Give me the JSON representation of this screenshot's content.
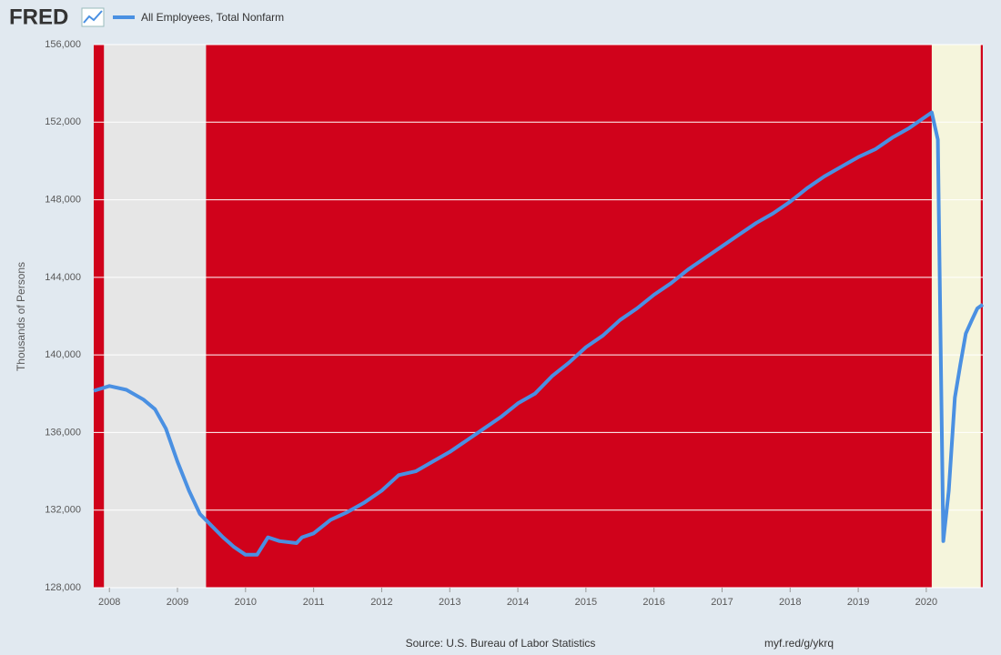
{
  "logo": "FRED",
  "chart_data": {
    "type": "line",
    "y_axis_label": "Thousands of Persons",
    "source": "Source: U.S. Bureau of Labor Statistics",
    "link": "myf.red/g/ykrq",
    "plot_background": "#d0021b",
    "grid": true,
    "bands": [
      {
        "start": 2007.92,
        "end": 2009.42,
        "color": "#e6e6e6"
      },
      {
        "start": 2020.08,
        "end": 2020.8,
        "color": "#f5f5dc"
      }
    ],
    "x": [
      2007.77,
      2008.0,
      2008.25,
      2008.5,
      2008.67,
      2008.83,
      2009.0,
      2009.17,
      2009.33,
      2009.5,
      2009.67,
      2009.83,
      2010.0,
      2010.17,
      2010.33,
      2010.5,
      2010.75,
      2010.83,
      2011.0,
      2011.25,
      2011.5,
      2011.75,
      2012.0,
      2012.25,
      2012.5,
      2012.75,
      2013.0,
      2013.25,
      2013.5,
      2013.75,
      2014.0,
      2014.25,
      2014.5,
      2014.75,
      2015.0,
      2015.25,
      2015.5,
      2015.75,
      2016.0,
      2016.25,
      2016.5,
      2016.75,
      2017.0,
      2017.25,
      2017.5,
      2017.75,
      2018.0,
      2018.25,
      2018.5,
      2018.75,
      2019.0,
      2019.25,
      2019.5,
      2019.75,
      2020.08,
      2020.17,
      2020.25,
      2020.33,
      2020.42,
      2020.5,
      2020.58,
      2020.67,
      2020.75,
      2020.83
    ],
    "series": [
      {
        "name": "All Employees, Total Nonfarm",
        "color": "#4a90e2",
        "values": [
          138150,
          138400,
          138200,
          137700,
          137200,
          136200,
          134500,
          133000,
          131800,
          131200,
          130600,
          130100,
          129700,
          129700,
          130600,
          130400,
          130300,
          130600,
          130800,
          131500,
          131900,
          132400,
          133000,
          133800,
          134000,
          134500,
          135000,
          135600,
          136200,
          136800,
          137500,
          138000,
          138900,
          139600,
          140400,
          141000,
          141800,
          142400,
          143100,
          143700,
          144400,
          145000,
          145600,
          146200,
          146800,
          147300,
          147900,
          148600,
          149200,
          149700,
          150200,
          150600,
          151200,
          151700,
          152500,
          151100,
          130400,
          133000,
          137800,
          139500,
          141100,
          141800,
          142400,
          142600
        ]
      }
    ],
    "xlim": [
      2007.77,
      2020.83
    ],
    "xticks": [
      2008,
      2009,
      2010,
      2011,
      2012,
      2013,
      2014,
      2015,
      2016,
      2017,
      2018,
      2019,
      2020
    ],
    "ylim": [
      128000,
      156000
    ],
    "yticks": [
      {
        "value": 128000,
        "label": "128,000"
      },
      {
        "value": 132000,
        "label": "132,000"
      },
      {
        "value": 136000,
        "label": "136,000"
      },
      {
        "value": 140000,
        "label": "140,000"
      },
      {
        "value": 144000,
        "label": "144,000"
      },
      {
        "value": 148000,
        "label": "148,000"
      },
      {
        "value": 152000,
        "label": "152,000"
      },
      {
        "value": 156000,
        "label": "156,000"
      }
    ]
  }
}
